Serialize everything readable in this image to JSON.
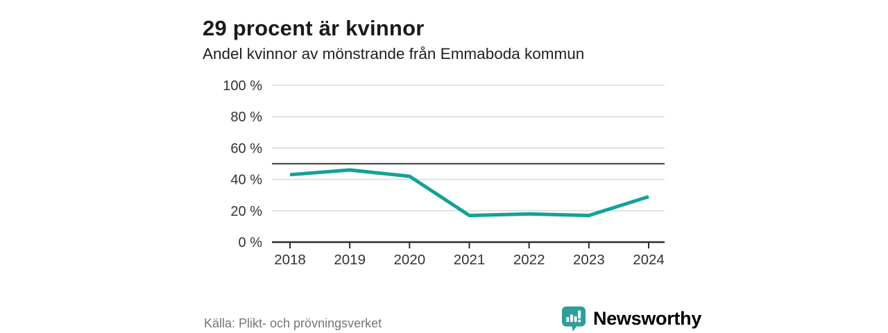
{
  "header": {
    "title": "29 procent är kvinnor",
    "subtitle": "Andel kvinnor av mönstrande från Emmaboda kommun"
  },
  "chart_data": {
    "type": "line",
    "title": "29 procent är kvinnor",
    "subtitle": "Andel kvinnor av mönstrande från Emmaboda kommun",
    "categories": [
      "2018",
      "2019",
      "2020",
      "2021",
      "2022",
      "2023",
      "2024"
    ],
    "values": [
      43,
      46,
      42,
      17,
      18,
      17,
      29
    ],
    "xlabel": "",
    "ylabel": "",
    "ylim": [
      0,
      100
    ],
    "ytick_step": 20,
    "ytick_suffix": " %",
    "grid": true,
    "legend": false,
    "reference_line": {
      "value": 50,
      "color": "#4d4d4d"
    },
    "line_color": "#12a296",
    "gridline_color": "#d8d8d8",
    "axis_color": "#2b2b2b",
    "tick_label_color": "#333333"
  },
  "footer": {
    "source": "Källa: Plikt- och prövningsverket",
    "logo_text": "Newsworthy",
    "logo_color": "#2e9e9a"
  }
}
